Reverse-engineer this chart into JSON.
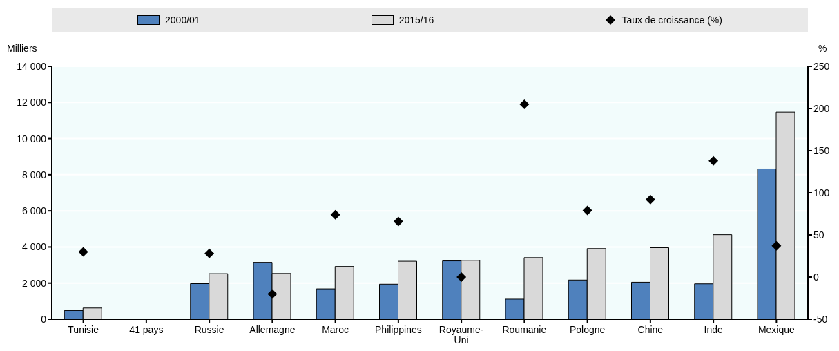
{
  "chart_data": {
    "type": "bar",
    "ylabel": "Milliers",
    "y2label": "%",
    "categories": [
      "Tunisie",
      "41 pays",
      "Russie",
      "Allemagne",
      "Maroc",
      "Philippines",
      "Royaume-Uni",
      "Roumanie",
      "Pologne",
      "Chine",
      "Inde",
      "Mexique"
    ],
    "series": [
      {
        "name": "2000/01",
        "color": "#4f81bd",
        "values": [
          480,
          null,
          1970,
          3150,
          1680,
          1940,
          3230,
          1110,
          2170,
          2050,
          1960,
          8320
        ]
      },
      {
        "name": "2015/16",
        "color": "#d9d9d9",
        "values": [
          620,
          null,
          2520,
          2530,
          2920,
          3210,
          3260,
          3410,
          3910,
          3960,
          4680,
          11470
        ]
      },
      {
        "name": "Taux de croissance (%)",
        "type": "scatter",
        "axis": "y2",
        "marker": "diamond",
        "color": "#000000",
        "values": [
          30,
          null,
          28,
          -20,
          74,
          66,
          0,
          205,
          79,
          92,
          138,
          37
        ]
      }
    ],
    "ylim": [
      0,
      14000
    ],
    "yticks": [
      {
        "value": 0,
        "label": "0"
      },
      {
        "value": 2000,
        "label": "2 000"
      },
      {
        "value": 4000,
        "label": "4 000"
      },
      {
        "value": 6000,
        "label": "6 000"
      },
      {
        "value": 8000,
        "label": "8 000"
      },
      {
        "value": 10000,
        "label": "10 000"
      },
      {
        "value": 12000,
        "label": "12 000"
      },
      {
        "value": 14000,
        "label": "14 000"
      }
    ],
    "y2lim": [
      -50,
      250
    ],
    "y2ticks": [
      -50,
      0,
      50,
      100,
      150,
      200,
      250
    ],
    "grid": "y",
    "legend": "top"
  }
}
